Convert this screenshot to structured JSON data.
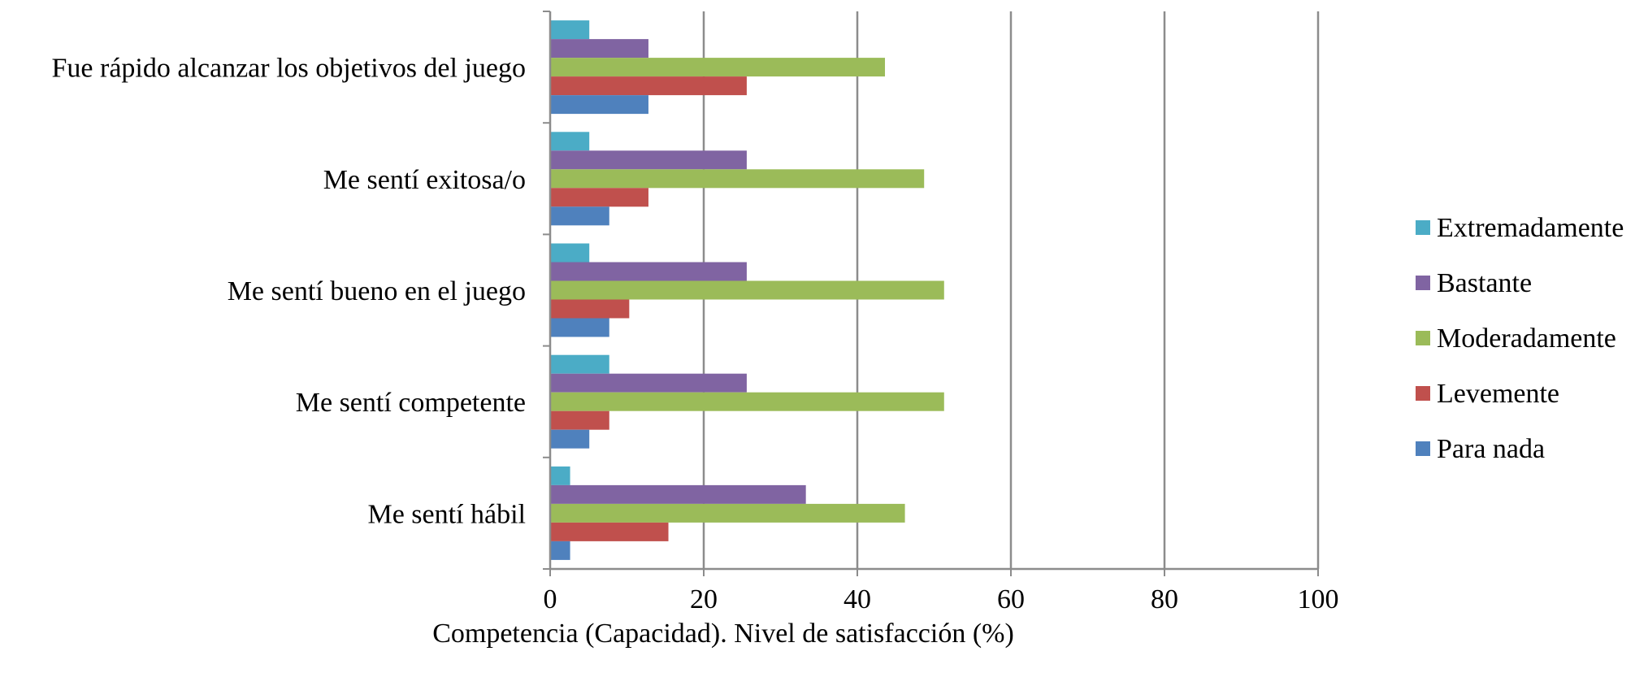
{
  "chart_data": {
    "type": "bar",
    "orientation": "horizontal",
    "title": "",
    "xlabel": "Competencia (Capacidad). Nivel de satisfacción (%)",
    "ylabel": "",
    "xlim": [
      0,
      100
    ],
    "xticks": [
      0,
      20,
      40,
      60,
      80,
      100
    ],
    "grid": "vertical",
    "legend_position": "right",
    "categories": [
      "Fue rápido alcanzar los objetivos del juego",
      "Me sentí exitosa/o",
      "Me sentí bueno en el juego",
      "Me sentí competente",
      "Me sentí hábil"
    ],
    "series": [
      {
        "name": "Extremadamente",
        "color": "#4BACC6",
        "values": [
          5.1,
          5.1,
          5.1,
          7.7,
          2.6
        ]
      },
      {
        "name": "Bastante",
        "color": "#8064A2",
        "values": [
          12.8,
          25.6,
          25.6,
          25.6,
          33.3
        ]
      },
      {
        "name": "Moderadamente",
        "color": "#9BBB59",
        "values": [
          43.6,
          48.7,
          51.3,
          51.3,
          46.2
        ]
      },
      {
        "name": "Levemente",
        "color": "#C0504D",
        "values": [
          25.6,
          12.8,
          10.3,
          7.7,
          15.4
        ]
      },
      {
        "name": "Para nada",
        "color": "#4F81BD",
        "values": [
          12.8,
          7.7,
          7.7,
          5.1,
          2.6
        ]
      }
    ]
  }
}
